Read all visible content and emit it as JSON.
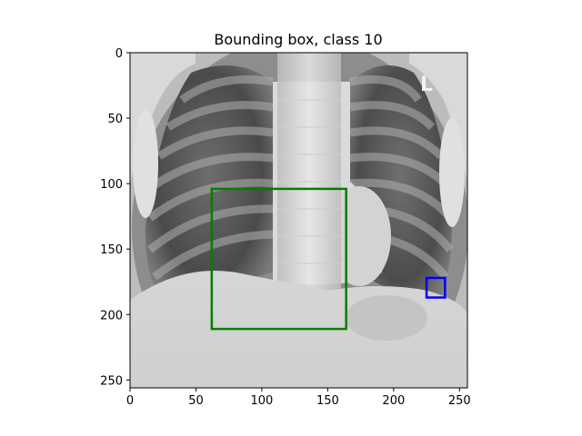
{
  "title": "Bounding box, class 10",
  "image": {
    "description_kind": "chest x-ray",
    "width": 256,
    "height": 256,
    "corner_marker_text": "L"
  },
  "axes": {
    "x_ticks": [
      0,
      50,
      100,
      150,
      200,
      250
    ],
    "y_ticks": [
      0,
      50,
      100,
      150,
      200,
      250
    ],
    "xlim": [
      0,
      256
    ],
    "ylim": [
      256,
      0
    ]
  },
  "boxes": [
    {
      "color": "#008000",
      "x0": 62,
      "y0": 104,
      "x1": 164,
      "y1": 211
    },
    {
      "color": "#0000ff",
      "x0": 225,
      "y0": 172,
      "x1": 239,
      "y1": 187
    }
  ]
}
